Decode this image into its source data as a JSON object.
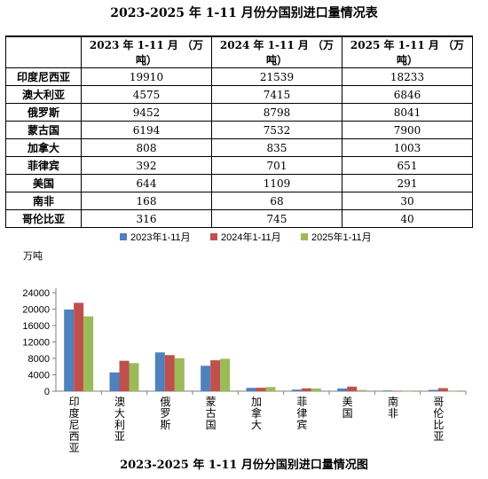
{
  "table": {
    "title": "2023-2025 年 1-11 月份分国别进口量情况表",
    "corner": "",
    "headers": [
      "2023 年 1-11 月 （万吨）",
      "2024 年 1-11 月 （万吨）",
      "2025 年 1-11 月 （万吨）"
    ],
    "rows": [
      {
        "country": "印度尼西亚",
        "values": [
          "19910",
          "21539",
          "18233"
        ]
      },
      {
        "country": "澳大利亚",
        "values": [
          "4575",
          "7415",
          "6846"
        ]
      },
      {
        "country": "俄罗斯",
        "values": [
          "9452",
          "8798",
          "8041"
        ]
      },
      {
        "country": "蒙古国",
        "values": [
          "6194",
          "7532",
          "7900"
        ]
      },
      {
        "country": "加拿大",
        "values": [
          "808",
          "835",
          "1003"
        ]
      },
      {
        "country": "菲律宾",
        "values": [
          "392",
          "701",
          "651"
        ]
      },
      {
        "country": "美国",
        "values": [
          "644",
          "1109",
          "291"
        ]
      },
      {
        "country": "南非",
        "values": [
          "168",
          "68",
          "30"
        ]
      },
      {
        "country": "哥伦比亚",
        "values": [
          "316",
          "745",
          "40"
        ]
      }
    ]
  },
  "chart_data": {
    "type": "bar",
    "title": "2023-2025 年 1-11 月份分国别进口量情况图",
    "ylabel": "万吨",
    "xlabel": "",
    "categories": [
      "印度尼西亚",
      "澳大利亚",
      "俄罗斯",
      "蒙古国",
      "加拿大",
      "菲律宾",
      "美国",
      "南非",
      "哥伦比亚"
    ],
    "series": [
      {
        "name": "2023年1-11月",
        "color": "#4f81bd",
        "values": [
          19910,
          4575,
          9452,
          6194,
          808,
          392,
          644,
          168,
          316
        ]
      },
      {
        "name": "2024年1-11月",
        "color": "#c0504d",
        "values": [
          21539,
          7415,
          8798,
          7532,
          835,
          701,
          1109,
          68,
          745
        ]
      },
      {
        "name": "2025年1-11月",
        "color": "#9bbb59",
        "values": [
          18233,
          6846,
          8041,
          7900,
          1003,
          651,
          291,
          30,
          40
        ]
      }
    ],
    "ylim": [
      0,
      24000
    ],
    "yticks": [
      0,
      4000,
      8000,
      12000,
      16000,
      20000,
      24000
    ],
    "grid": false,
    "legend": "top-center"
  }
}
